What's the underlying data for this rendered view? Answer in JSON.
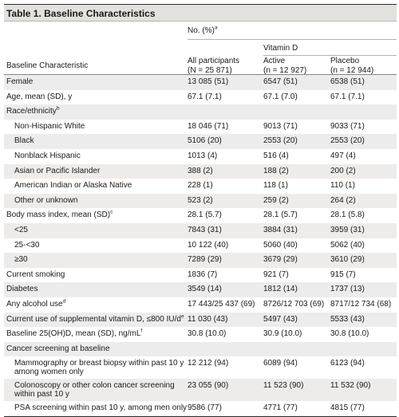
{
  "table": {
    "title": "Table 1. Baseline Characteristics",
    "header": {
      "no_pct": "No. (%)",
      "no_pct_note": "a",
      "vitamin_d": "Vitamin D",
      "row_label": "Baseline Characteristic",
      "all_line1": "All participants",
      "all_line2": "(N = 25 871)",
      "active_line1": "Active",
      "active_line2": "(n = 12 927)",
      "placebo_line1": "Placebo",
      "placebo_line2": "(n = 12 944)"
    },
    "rows": [
      {
        "label": "Female",
        "all": "13 085 (51)",
        "active": "6547 (51)",
        "placebo": "6538 (51)"
      },
      {
        "label": "Age, mean (SD), y",
        "all": "67.1 (7.1)",
        "active": "67.1 (7.0)",
        "placebo": "67.1 (7.1)"
      },
      {
        "label": "Race/ethnicity",
        "note": "b",
        "all": "",
        "active": "",
        "placebo": ""
      },
      {
        "label": "Non-Hispanic White",
        "all": "18 046 (71)",
        "active": "9013 (71)",
        "placebo": "9033 (71)"
      },
      {
        "label": "Black",
        "all": "5106 (20)",
        "active": "2553 (20)",
        "placebo": "2553 (20)"
      },
      {
        "label": "Nonblack Hispanic",
        "all": "1013 (4)",
        "active": "516 (4)",
        "placebo": "497 (4)"
      },
      {
        "label": "Asian or Pacific Islander",
        "all": "388 (2)",
        "active": "188 (2)",
        "placebo": "200 (2)"
      },
      {
        "label": "American Indian or Alaska Native",
        "all": "228 (1)",
        "active": "118 (1)",
        "placebo": "110 (1)"
      },
      {
        "label": "Other or unknown",
        "all": "523 (2)",
        "active": "259 (2)",
        "placebo": "264 (2)"
      },
      {
        "label": "Body mass index, mean (SD)",
        "note": "c",
        "all": "28.1 (5.7)",
        "active": "28.1 (5.7)",
        "placebo": "28.1 (5.8)"
      },
      {
        "label": "<25",
        "all": "7843 (31)",
        "active": "3884 (31)",
        "placebo": "3959 (31)"
      },
      {
        "label": "25-<30",
        "all": "10 122 (40)",
        "active": "5060 (40)",
        "placebo": "5062 (40)"
      },
      {
        "label": "≥30",
        "all": "7289 (29)",
        "active": "3679 (29)",
        "placebo": "3610 (29)"
      },
      {
        "label": "Current smoking",
        "all": "1836 (7)",
        "active": "921 (7)",
        "placebo": "915 (7)"
      },
      {
        "label": "Diabetes",
        "all": "3549 (14)",
        "active": "1812 (14)",
        "placebo": "1737 (13)"
      },
      {
        "label": "Any alcohol use",
        "note": "d",
        "all": "17 443/25 437 (69)",
        "active": "8726/12 703 (69)",
        "placebo": "8717/12 734 (68)"
      },
      {
        "label": "Current use of supplemental vitamin D, ≤800 IU/d",
        "note": "e",
        "all": "11 030 (43)",
        "active": "5497 (43)",
        "placebo": "5533 (43)"
      },
      {
        "label": "Baseline 25(OH)D, mean (SD), ng/mL",
        "note": "f",
        "all": "30.8 (10.0)",
        "active": "30.9 (10.0)",
        "placebo": "30.8 (10.0)"
      },
      {
        "label": "Cancer screening at baseline",
        "all": "",
        "active": "",
        "placebo": ""
      },
      {
        "label": "Mammography or breast biopsy within past 10 y",
        "label2": "among women only",
        "all": "12 212 (94)",
        "active": "6089 (94)",
        "placebo": "6123 (94)"
      },
      {
        "label": "Colonoscopy or other colon cancer screening",
        "label2": "within past 10 y",
        "all": "23 055 (90)",
        "active": "11 523 (90)",
        "placebo": "11 532 (90)"
      },
      {
        "label": "PSA screening within past 10 y, among men only",
        "all": "9586 (77)",
        "active": "4771 (77)",
        "placebo": "4815 (77)"
      }
    ]
  }
}
